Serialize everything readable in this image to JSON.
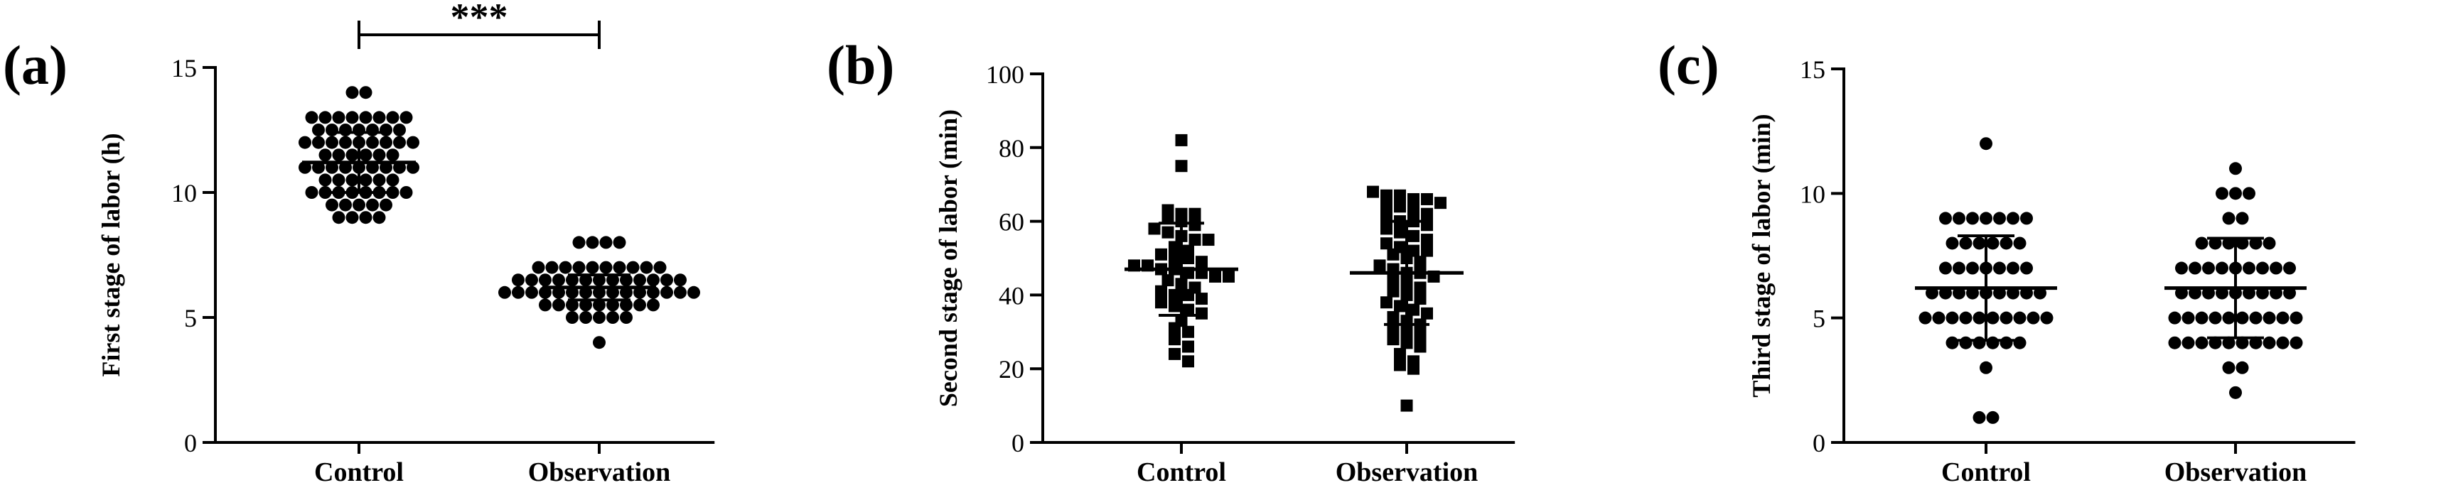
{
  "chart_data": [
    {
      "type": "scatter",
      "panel_label": "(a)",
      "ylabel": "First stage of labor (h)",
      "ylim": [
        0,
        15
      ],
      "yticks": [
        0,
        5,
        10,
        15
      ],
      "categories": [
        "Control",
        "Observation"
      ],
      "marker": "circle",
      "significance": "***",
      "groups": [
        {
          "name": "Control",
          "mean": 11.2,
          "sd": 1.2,
          "values": [
            14,
            14,
            13,
            13,
            13,
            13,
            13,
            13,
            13,
            13,
            12.5,
            12.5,
            12.5,
            12.5,
            12.5,
            12.5,
            12.5,
            12,
            12,
            12,
            12,
            12,
            12,
            12,
            12,
            12,
            11.5,
            11.5,
            11.5,
            11.5,
            11.5,
            11.5,
            11,
            11,
            11,
            11,
            11,
            11,
            11,
            11,
            11,
            10.5,
            10.5,
            10.5,
            10.5,
            10.5,
            10.5,
            10,
            10,
            10,
            10,
            10,
            10,
            10,
            10,
            9.5,
            9.5,
            9.5,
            9.5,
            9.5,
            9,
            9,
            9,
            9
          ]
        },
        {
          "name": "Observation",
          "mean": 6.2,
          "sd": 0.5,
          "values": [
            8,
            8,
            8,
            8,
            7,
            7,
            7,
            7,
            7,
            7,
            7,
            7,
            7,
            7,
            6.5,
            6.5,
            6.5,
            6.5,
            6.5,
            6.5,
            6.5,
            6.5,
            6.5,
            6.5,
            6.5,
            6.5,
            6.5,
            6,
            6,
            6,
            6,
            6,
            6,
            6,
            6,
            6,
            6,
            6,
            6,
            6,
            6,
            6,
            5.5,
            5.5,
            5.5,
            5.5,
            5.5,
            5.5,
            5.5,
            5.5,
            5.5,
            5,
            5,
            5,
            5,
            5,
            4
          ]
        }
      ]
    },
    {
      "type": "scatter",
      "panel_label": "(b)",
      "ylabel": "Second stage of labor (min)",
      "ylim": [
        0,
        100
      ],
      "yticks": [
        0,
        20,
        40,
        60,
        80,
        100
      ],
      "categories": [
        "Control",
        "Observation"
      ],
      "marker": "square",
      "groups": [
        {
          "name": "Control",
          "mean": 47,
          "sd": 12.5,
          "values": [
            82,
            75,
            63,
            62,
            62,
            61,
            60,
            59,
            58,
            57,
            56,
            55,
            55,
            53,
            52,
            51,
            50,
            50,
            49,
            48,
            48,
            47,
            47,
            46,
            46,
            45,
            45,
            44,
            43,
            42,
            41,
            40,
            40,
            39,
            38,
            37,
            36,
            35,
            33,
            31,
            30,
            28,
            26,
            24,
            22
          ]
        },
        {
          "name": "Observation",
          "mean": 46,
          "sd": 14,
          "values": [
            68,
            67,
            67,
            66,
            66,
            65,
            64,
            64,
            63,
            62,
            61,
            60,
            60,
            59,
            58,
            57,
            56,
            55,
            54,
            53,
            52,
            52,
            51,
            50,
            49,
            48,
            47,
            46,
            46,
            45,
            44,
            43,
            42,
            41,
            40,
            39,
            38,
            37,
            36,
            35,
            34,
            33,
            32,
            31,
            30,
            29,
            28,
            27,
            26,
            24,
            22,
            21,
            20,
            10
          ]
        }
      ]
    },
    {
      "type": "scatter",
      "panel_label": "(c)",
      "ylabel": "Third stage of labor (min)",
      "ylim": [
        0,
        15
      ],
      "yticks": [
        0,
        5,
        10,
        15
      ],
      "categories": [
        "Control",
        "Observation"
      ],
      "marker": "circle",
      "groups": [
        {
          "name": "Control",
          "mean": 6.2,
          "sd": 2.1,
          "values": [
            12,
            9,
            9,
            9,
            9,
            9,
            9,
            9,
            8,
            8,
            8,
            8,
            8,
            8,
            7,
            7,
            7,
            7,
            7,
            7,
            7,
            6,
            6,
            6,
            6,
            6,
            6,
            6,
            6,
            6,
            5,
            5,
            5,
            5,
            5,
            5,
            5,
            5,
            5,
            5,
            4,
            4,
            4,
            4,
            4,
            4,
            3,
            1,
            1
          ]
        },
        {
          "name": "Observation",
          "mean": 6.2,
          "sd": 2.0,
          "values": [
            11,
            10,
            10,
            10,
            9,
            9,
            8,
            8,
            8,
            8,
            8,
            8,
            7,
            7,
            7,
            7,
            7,
            7,
            7,
            7,
            7,
            6,
            6,
            6,
            6,
            6,
            6,
            6,
            6,
            6,
            5,
            5,
            5,
            5,
            5,
            5,
            5,
            5,
            5,
            5,
            4,
            4,
            4,
            4,
            4,
            4,
            4,
            4,
            4,
            4,
            3,
            3,
            2
          ]
        }
      ]
    }
  ]
}
